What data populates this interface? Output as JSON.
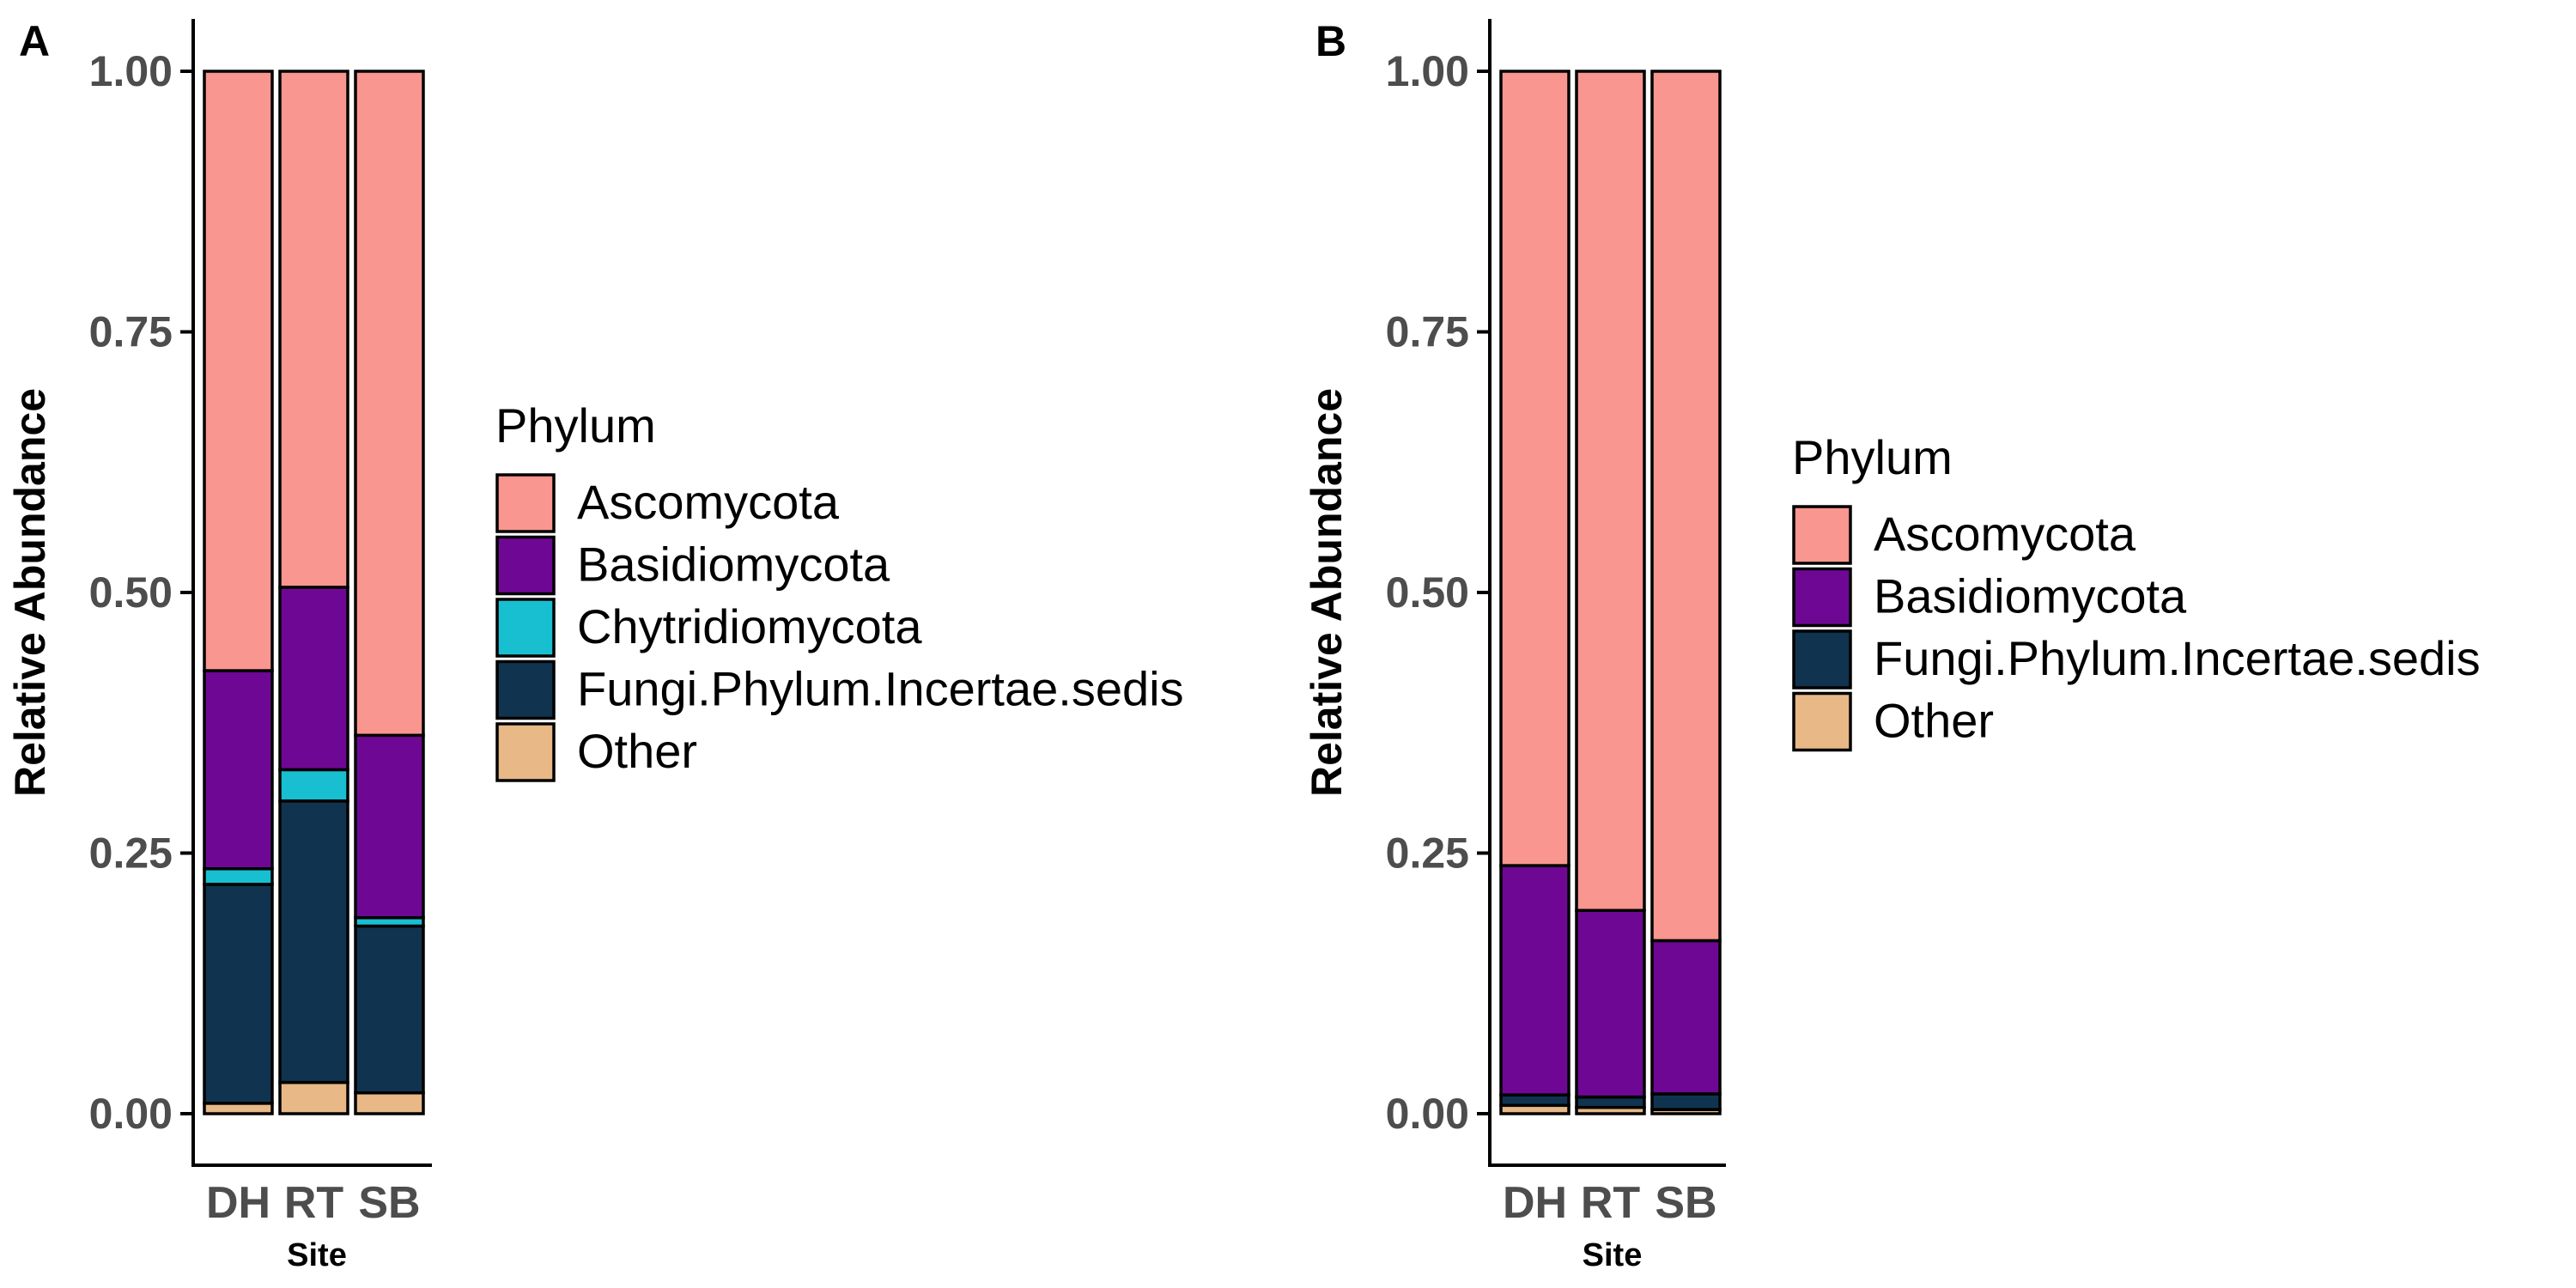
{
  "colors": {
    "Ascomycota": "#f8968f",
    "Basidiomycota": "#6e0894",
    "Chytridiomycota": "#18bfd1",
    "Fungi.Phylum.Incertae.sedis": "#10344f",
    "Other": "#e8b886"
  },
  "chart_data": [
    {
      "type": "bar",
      "stacked": true,
      "panel": "A",
      "xlabel": "Site",
      "ylabel": "Relative Abundance",
      "ylim": [
        0,
        1
      ],
      "yticks": [
        "0.00",
        "0.25",
        "0.50",
        "0.75",
        "1.00"
      ],
      "categories": [
        "DH",
        "RT",
        "SB"
      ],
      "legend": {
        "title": "Phylum",
        "placement": "right"
      },
      "series": [
        {
          "name": "Other",
          "values": [
            0.01,
            0.03,
            0.02
          ]
        },
        {
          "name": "Fungi.Phylum.Incertae.sedis",
          "values": [
            0.21,
            0.27,
            0.16
          ]
        },
        {
          "name": "Chytridiomycota",
          "values": [
            0.015,
            0.03,
            0.008
          ]
        },
        {
          "name": "Basidiomycota",
          "values": [
            0.19,
            0.175,
            0.175
          ]
        },
        {
          "name": "Ascomycota",
          "values": [
            0.575,
            0.495,
            0.637
          ]
        }
      ],
      "legend_order": [
        "Ascomycota",
        "Basidiomycota",
        "Chytridiomycota",
        "Fungi.Phylum.Incertae.sedis",
        "Other"
      ]
    },
    {
      "type": "bar",
      "stacked": true,
      "panel": "B",
      "xlabel": "Site",
      "ylabel": "Relative Abundance",
      "ylim": [
        0,
        1
      ],
      "yticks": [
        "0.00",
        "0.25",
        "0.50",
        "0.75",
        "1.00"
      ],
      "categories": [
        "DH",
        "RT",
        "SB"
      ],
      "legend": {
        "title": "Phylum",
        "placement": "right"
      },
      "series": [
        {
          "name": "Other",
          "values": [
            0.008,
            0.006,
            0.004
          ]
        },
        {
          "name": "Fungi.Phylum.Incertae.sedis",
          "values": [
            0.01,
            0.01,
            0.015
          ]
        },
        {
          "name": "Basidiomycota",
          "values": [
            0.22,
            0.179,
            0.147
          ]
        },
        {
          "name": "Ascomycota",
          "values": [
            0.762,
            0.805,
            0.834
          ]
        }
      ],
      "legend_order": [
        "Ascomycota",
        "Basidiomycota",
        "Fungi.Phylum.Incertae.sedis",
        "Other"
      ]
    }
  ]
}
